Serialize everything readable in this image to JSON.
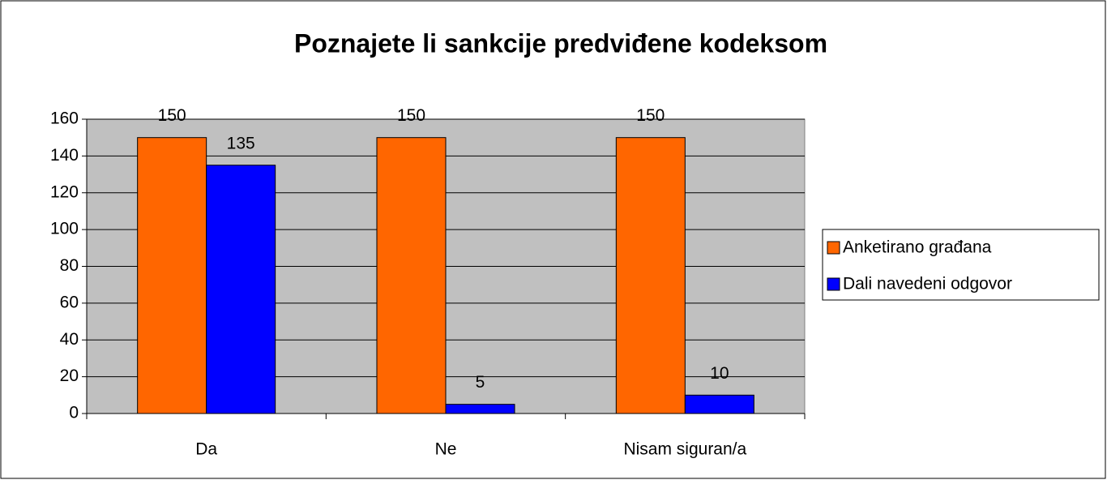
{
  "chart_data": {
    "type": "bar",
    "title": "Poznajete li sankcije predviđene kodeksom",
    "categories": [
      "Da",
      "Ne",
      "Nisam siguran/a"
    ],
    "series": [
      {
        "name": "Anketirano građana",
        "color": "#ff6600",
        "values": [
          150,
          150,
          150
        ]
      },
      {
        "name": "Dali navedeni odgovor",
        "color": "#0000ff",
        "values": [
          135,
          5,
          10
        ]
      }
    ],
    "ylim": [
      0,
      160
    ],
    "yticks": [
      0,
      20,
      40,
      60,
      80,
      100,
      120,
      140,
      160
    ],
    "grid": true,
    "legend": "right"
  }
}
